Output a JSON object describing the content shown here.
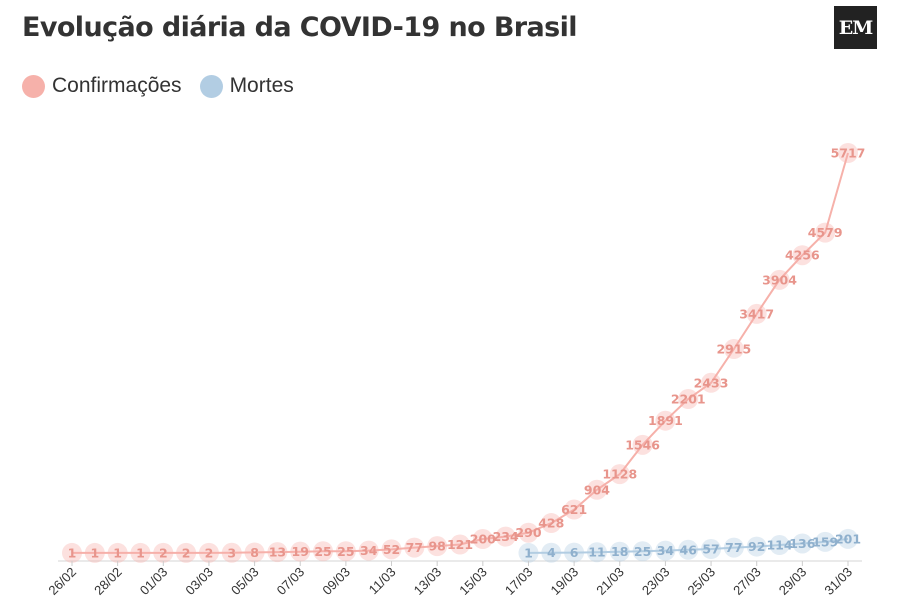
{
  "title": "Evolução diária da COVID-19 no Brasil",
  "logo": "EM",
  "legend": [
    {
      "label": "Confirmações",
      "color": "#f6b1aa"
    },
    {
      "label": "Mortes",
      "color": "#b2cde3"
    }
  ],
  "chart_data": {
    "type": "line",
    "title": "Evolução diária da COVID-19 no Brasil",
    "xlabel": "",
    "ylabel": "",
    "ylim": [
      0,
      5900
    ],
    "grid": false,
    "legend_position": "top-left",
    "x": [
      "26/02",
      "27/02",
      "28/02",
      "29/02",
      "01/03",
      "02/03",
      "03/03",
      "04/03",
      "05/03",
      "06/03",
      "07/03",
      "08/03",
      "09/03",
      "10/03",
      "11/03",
      "12/03",
      "13/03",
      "14/03",
      "15/03",
      "16/03",
      "17/03",
      "18/03",
      "19/03",
      "20/03",
      "21/03",
      "22/03",
      "23/03",
      "24/03",
      "25/03",
      "26/03",
      "27/03",
      "28/03",
      "29/03",
      "30/03",
      "31/03"
    ],
    "x_tick_labels": [
      "26/02",
      "28/02",
      "01/03",
      "03/03",
      "05/03",
      "07/03",
      "09/03",
      "11/03",
      "13/03",
      "15/03",
      "17/03",
      "19/03",
      "21/03",
      "23/03",
      "25/03",
      "27/03",
      "29/03",
      "31/03"
    ],
    "series": [
      {
        "name": "Confirmações",
        "color": "#f6b1aa",
        "label_color": "#e8958c",
        "values": [
          1,
          1,
          1,
          1,
          2,
          2,
          2,
          3,
          8,
          13,
          19,
          25,
          25,
          34,
          52,
          77,
          98,
          121,
          200,
          234,
          290,
          428,
          621,
          904,
          1128,
          1546,
          1891,
          2201,
          2433,
          2915,
          3417,
          3904,
          4256,
          4579,
          5717
        ]
      },
      {
        "name": "Mortes",
        "color": "#b2cde3",
        "label_color": "#8fb0cd",
        "values": [
          null,
          null,
          null,
          null,
          null,
          null,
          null,
          null,
          null,
          null,
          null,
          null,
          null,
          null,
          null,
          null,
          null,
          null,
          null,
          null,
          1,
          4,
          6,
          11,
          18,
          25,
          34,
          46,
          57,
          77,
          92,
          114,
          136,
          159,
          201
        ]
      }
    ]
  }
}
